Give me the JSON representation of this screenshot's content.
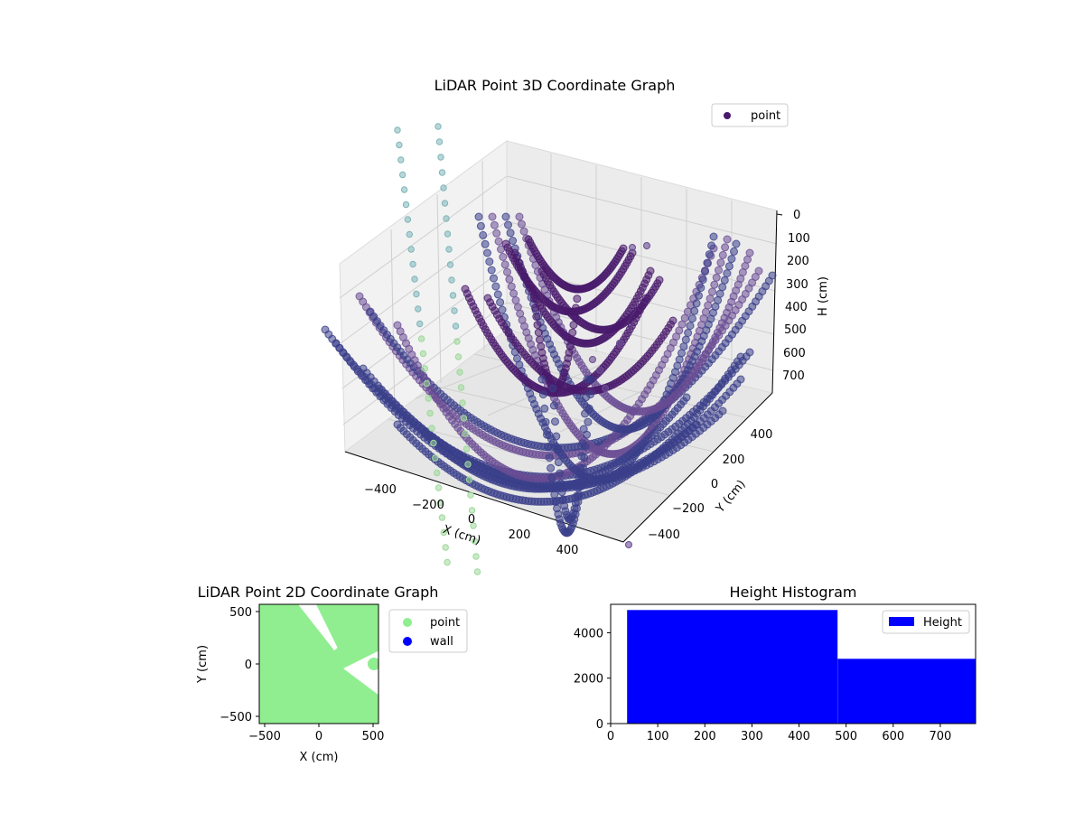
{
  "chart_data": [
    {
      "type": "scatter",
      "title": "LiDAR Point 3D Coordinate Graph",
      "xlabel": "X (cm)",
      "ylabel": "Y (cm)",
      "zlabel": "H (cm)",
      "x_ticks": [
        "−400",
        "−200",
        "0",
        "200",
        "400"
      ],
      "y_ticks": [
        "400",
        "200",
        "0",
        "−200",
        "−400"
      ],
      "z_ticks": [
        "0",
        "100",
        "200",
        "300",
        "400",
        "500",
        "600",
        "700"
      ],
      "xlim": [
        -550,
        550
      ],
      "ylim": [
        -550,
        550
      ],
      "zlim": [
        0,
        780
      ],
      "z_inverted": true,
      "legend": {
        "placement": "top-right",
        "entries": [
          {
            "label": "point",
            "color": "#481a6c"
          }
        ]
      },
      "colors": {
        "point_dark": "#481a6c",
        "point_mid": "#3b3f8a",
        "point_light": "#6a4c93",
        "column_teal": "#7fb6b9",
        "column_green": "#9ed99a"
      }
    },
    {
      "type": "scatter",
      "title": "LiDAR Point 2D Coordinate Graph",
      "xlabel": "X (cm)",
      "ylabel": "Y (cm)",
      "x_ticks": [
        "−500",
        "0",
        "500"
      ],
      "y_ticks": [
        "500",
        "0",
        "−500"
      ],
      "xlim": [
        -550,
        550
      ],
      "ylim": [
        -550,
        550
      ],
      "legend": {
        "placement": "outside-right",
        "entries": [
          {
            "label": "point",
            "color": "#90ee90"
          },
          {
            "label": "wall",
            "color": "#0000ff"
          }
        ]
      }
    },
    {
      "type": "bar",
      "title": "Height Histogram",
      "xlabel": "",
      "ylabel": "",
      "x_ticks": [
        "0",
        "100",
        "200",
        "300",
        "400",
        "500",
        "600",
        "700"
      ],
      "y_ticks": [
        "0",
        "2000",
        "4000"
      ],
      "xlim": [
        0,
        775
      ],
      "ylim": [
        0,
        5250
      ],
      "bins": [
        {
          "x0": 35,
          "x1": 482,
          "count": 5000
        },
        {
          "x0": 482,
          "x1": 775,
          "count": 2850
        }
      ],
      "color": "#0000ff",
      "legend": {
        "placement": "top-right",
        "entries": [
          {
            "label": "Height",
            "color": "#0000ff"
          }
        ]
      }
    }
  ]
}
